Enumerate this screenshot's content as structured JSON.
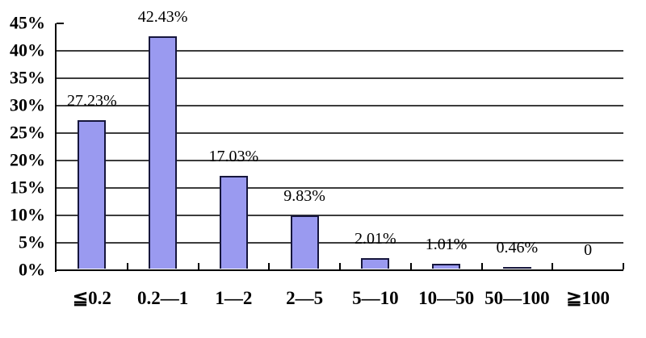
{
  "chart_data": {
    "type": "bar",
    "title": "",
    "xlabel": "",
    "ylabel": "",
    "categories": [
      "≦0.2",
      "0.2—1",
      "1—2",
      "2—5",
      "5—10",
      "10—50",
      "50—100",
      "≧100"
    ],
    "values": [
      27.23,
      42.43,
      17.03,
      9.83,
      2.01,
      1.01,
      0.46,
      0
    ],
    "data_labels": [
      "27.23%",
      "42.43%",
      "17.03%",
      "9.83%",
      "2.01%",
      "1.01%",
      "0.46%",
      "0"
    ],
    "y_ticks": [
      "0%",
      "5%",
      "10%",
      "15%",
      "20%",
      "25%",
      "30%",
      "35%",
      "40%",
      "45%"
    ],
    "ylim": [
      0,
      45
    ],
    "y_step": 5,
    "grid": true,
    "legend": false,
    "colors": {
      "background": "#ffffff",
      "bar_fill": "#9a9af0",
      "bar_border": "#16163c",
      "gridline": "#3c3c3c",
      "axis": "#000000",
      "text": "#000000"
    }
  }
}
